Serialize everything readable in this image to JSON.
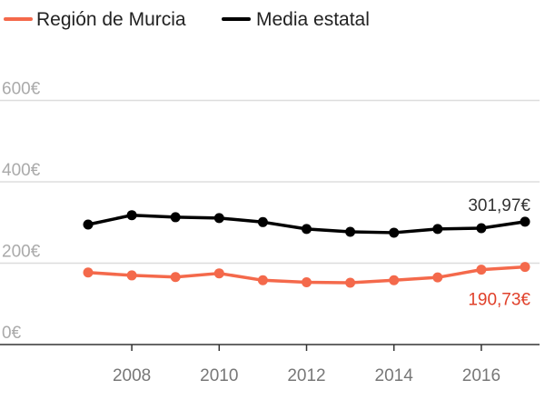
{
  "chart_data": {
    "type": "line",
    "title": "",
    "xlabel": "",
    "ylabel": "",
    "x": [
      2007,
      2008,
      2009,
      2010,
      2011,
      2012,
      2013,
      2014,
      2015,
      2016,
      2017
    ],
    "xticks": [
      2008,
      2010,
      2012,
      2014,
      2016
    ],
    "xtick_labels": [
      "2008",
      "2010",
      "2012",
      "2014",
      "2016"
    ],
    "yticks": [
      0,
      200,
      400,
      600
    ],
    "ytick_labels": [
      "0€",
      "200€",
      "400€",
      "600€"
    ],
    "ylim": [
      0,
      650
    ],
    "grid": true,
    "legend_position": "top-left",
    "series": [
      {
        "name": "Región de Murcia",
        "color": "#f4694b",
        "values": [
          177,
          170,
          166,
          175,
          158,
          153,
          152,
          158,
          165,
          184,
          190.73
        ],
        "end_label": "190,73€",
        "end_label_color": "#e0402a"
      },
      {
        "name": "Media estatal",
        "color": "#000000",
        "values": [
          295,
          318,
          313,
          311,
          301,
          284,
          277,
          275,
          284,
          286,
          301.97
        ],
        "end_label": "301,97€",
        "end_label_color": "#333333"
      }
    ]
  }
}
